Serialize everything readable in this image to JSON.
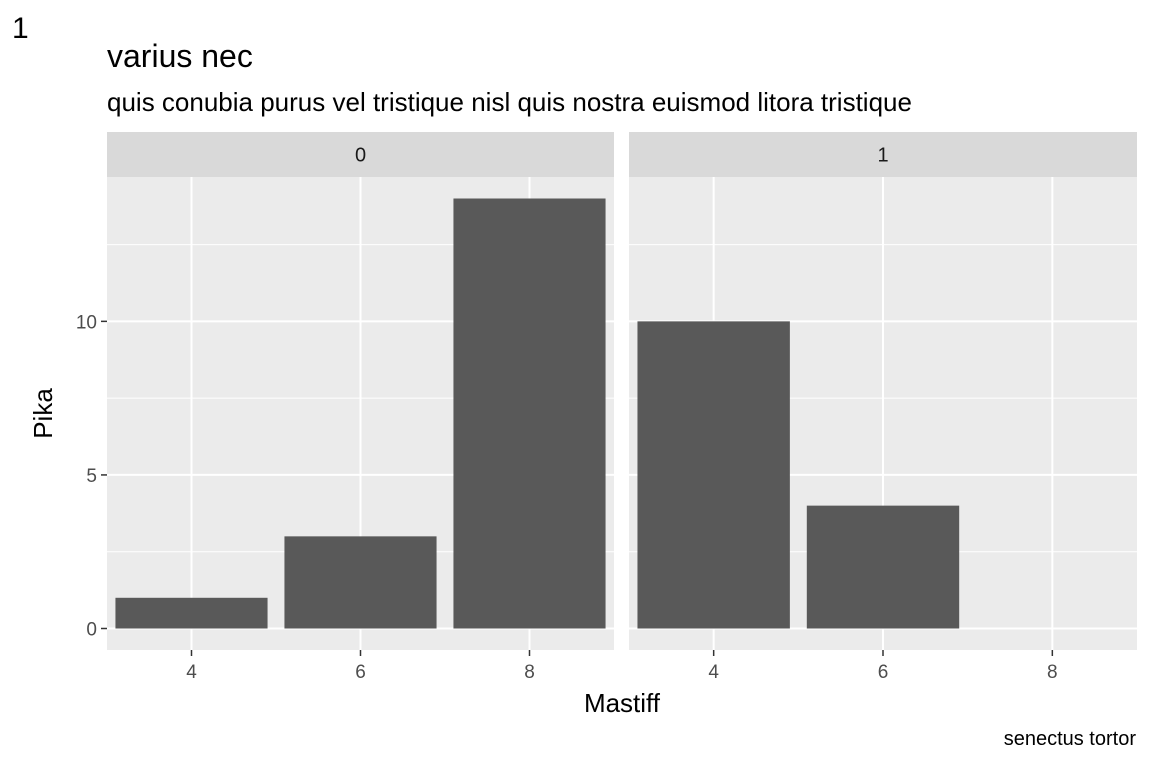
{
  "tag": "1",
  "title": "varius nec",
  "subtitle": "quis conubia purus vel tristique nisl quis nostra euismod litora tristique",
  "caption": "senectus tortor",
  "chart_data": {
    "type": "bar",
    "xlabel": "Mastiff",
    "ylabel": "Pika",
    "x_ticks": [
      "4",
      "6",
      "8"
    ],
    "y_ticks": [
      0,
      5,
      10
    ],
    "ylim": [
      -0.7,
      14.7
    ],
    "xlim": [
      3,
      9
    ],
    "grid": true,
    "facets": [
      {
        "label": "0",
        "x": [
          4,
          6,
          8
        ],
        "values": [
          1,
          3,
          14
        ]
      },
      {
        "label": "1",
        "x": [
          4,
          6,
          8
        ],
        "values": [
          10,
          4,
          0
        ]
      }
    ],
    "colors": {
      "bar": "#595959",
      "panel": "#ebebeb",
      "strip": "#d9d9d9",
      "grid": "#ffffff"
    }
  }
}
